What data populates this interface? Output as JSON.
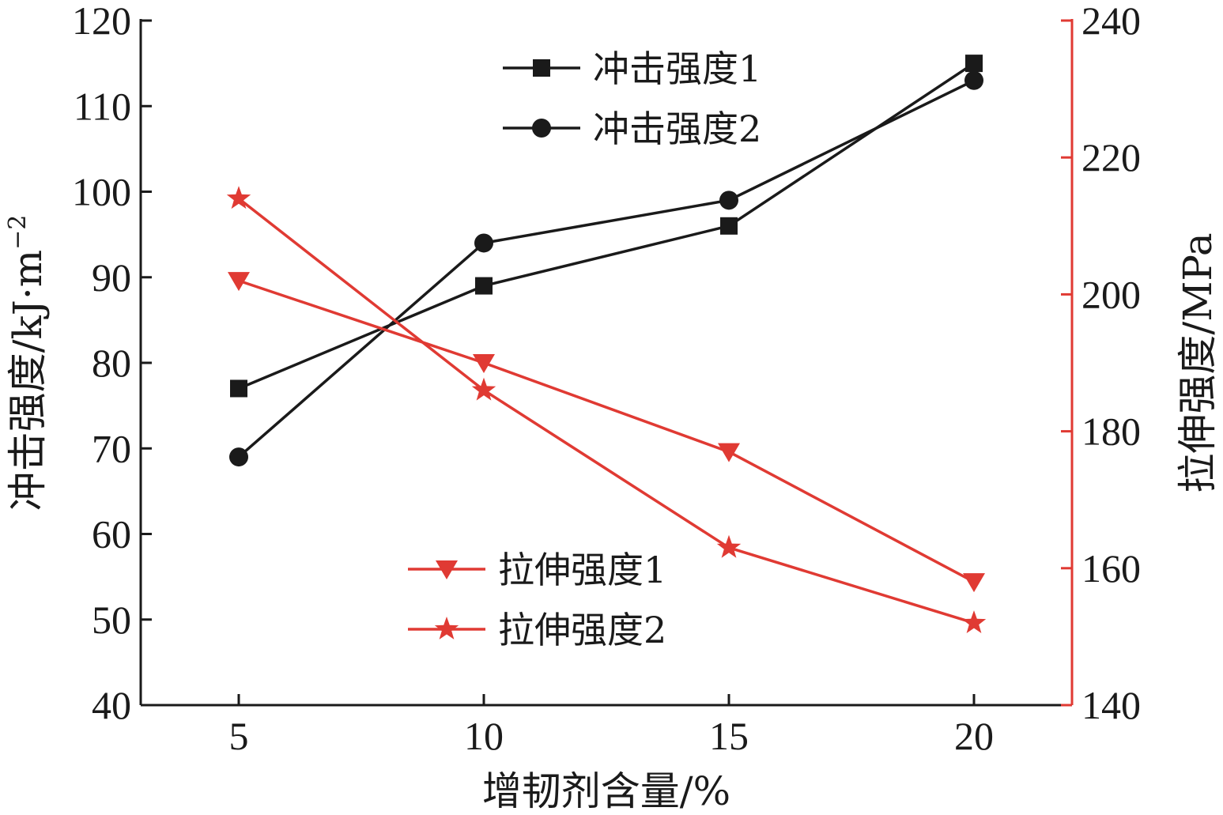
{
  "chart_data": {
    "type": "line",
    "x": [
      5,
      10,
      15,
      20
    ],
    "xlabel": "增韧剂含量/%",
    "xlim": [
      3,
      22
    ],
    "xticks": [
      5,
      10,
      15,
      20
    ],
    "y_left": {
      "label_main": "冲击强度/kJ·m",
      "label_sup": "−2",
      "ylim": [
        40,
        120
      ],
      "ticks": [
        40,
        50,
        60,
        70,
        80,
        90,
        100,
        110,
        120
      ],
      "color": "#1a1a1a"
    },
    "y_right": {
      "label": "拉伸强度/MPa",
      "ylim": [
        140,
        240
      ],
      "ticks": [
        140,
        160,
        180,
        200,
        220,
        240
      ],
      "color": "#e03a33"
    },
    "series": [
      {
        "name": "冲击强度1",
        "axis": "left",
        "marker": "square",
        "color": "#1a1a1a",
        "values": [
          77,
          89,
          96,
          115
        ]
      },
      {
        "name": "冲击强度2",
        "axis": "left",
        "marker": "circle",
        "color": "#1a1a1a",
        "values": [
          69,
          94,
          99,
          113
        ]
      },
      {
        "name": "拉伸强度1",
        "axis": "right",
        "marker": "triangle-down",
        "color": "#e03a33",
        "values": [
          202,
          190,
          177,
          158
        ]
      },
      {
        "name": "拉伸强度2",
        "axis": "right",
        "marker": "star",
        "color": "#e03a33",
        "values": [
          214,
          186,
          163,
          152
        ]
      }
    ],
    "legends": {
      "top": [
        "冲击强度1",
        "冲击强度2"
      ],
      "bottom": [
        "拉伸强度1",
        "拉伸强度2"
      ]
    },
    "grid": false
  }
}
